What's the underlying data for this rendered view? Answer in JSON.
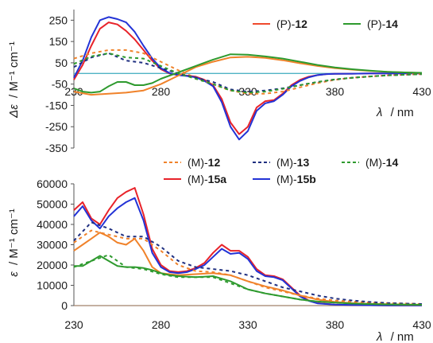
{
  "chart_data": [
    {
      "type": "line",
      "ylabel_symbol": "Δε",
      "ylabel_unit": "/ M⁻¹ cm⁻¹",
      "xlabel_symbol": "λ",
      "xlabel_unit": "/ nm",
      "xlim": [
        230,
        430
      ],
      "ylim": [
        -350,
        300
      ],
      "x_ticks": [
        "230",
        "280",
        "330",
        "380",
        "430"
      ],
      "y_ticks": [
        "250",
        "150",
        "50",
        "-50",
        "-150",
        "-250",
        "-350"
      ],
      "zero_line_color": "#4fb3c4",
      "legend_position": "top-right",
      "legend": [
        {
          "prefix": "(P)-",
          "label": "12",
          "color": "#ef4a2d"
        },
        {
          "prefix": "(P)-",
          "label": "14",
          "color": "#2e9a2e"
        }
      ],
      "series": [
        {
          "id": "P15a",
          "color": "#e8232a",
          "dash": "solid",
          "x": [
            230,
            235,
            240,
            245,
            250,
            255,
            260,
            265,
            270,
            275,
            280,
            285,
            290,
            295,
            300,
            305,
            310,
            315,
            320,
            325,
            330,
            335,
            340,
            345,
            350,
            355,
            360,
            365,
            370,
            375,
            380,
            390,
            400,
            410,
            420,
            430
          ],
          "y": [
            -30,
            40,
            130,
            210,
            240,
            230,
            200,
            160,
            110,
            60,
            20,
            0,
            -8,
            -10,
            -15,
            -30,
            -55,
            -120,
            -230,
            -285,
            -250,
            -160,
            -130,
            -125,
            -95,
            -55,
            -30,
            -15,
            -8,
            -3,
            -2,
            -1,
            0,
            0,
            0,
            0
          ]
        },
        {
          "id": "P15b",
          "color": "#2333d6",
          "dash": "solid",
          "x": [
            230,
            235,
            240,
            245,
            250,
            255,
            260,
            265,
            270,
            275,
            280,
            285,
            290,
            295,
            300,
            305,
            310,
            315,
            320,
            325,
            330,
            335,
            340,
            345,
            350,
            355,
            360,
            365,
            370,
            375,
            380,
            390,
            400,
            410,
            420,
            430
          ],
          "y": [
            -20,
            60,
            170,
            250,
            265,
            255,
            240,
            195,
            130,
            70,
            25,
            2,
            -8,
            -12,
            -18,
            -35,
            -60,
            -135,
            -250,
            -310,
            -270,
            -175,
            -140,
            -130,
            -100,
            -60,
            -35,
            -18,
            -8,
            -3,
            -2,
            -1,
            0,
            0,
            0,
            0
          ]
        },
        {
          "id": "P12",
          "color": "#f0822a",
          "dash": "solid",
          "x": [
            230,
            240,
            250,
            260,
            270,
            280,
            290,
            300,
            310,
            320,
            330,
            340,
            350,
            360,
            370,
            380,
            390,
            400,
            410,
            420,
            430
          ],
          "y": [
            -85,
            -100,
            -95,
            -90,
            -80,
            -50,
            -10,
            30,
            55,
            75,
            78,
            73,
            62,
            48,
            35,
            25,
            18,
            12,
            8,
            5,
            2
          ]
        },
        {
          "id": "P14",
          "color": "#2e9a2e",
          "dash": "solid",
          "x": [
            230,
            235,
            240,
            245,
            250,
            255,
            260,
            265,
            270,
            275,
            280,
            285,
            290,
            300,
            310,
            320,
            330,
            340,
            350,
            360,
            370,
            380,
            390,
            400,
            410,
            420,
            430
          ],
          "y": [
            -70,
            -85,
            -90,
            -85,
            -60,
            -40,
            -40,
            -55,
            -55,
            -45,
            -25,
            -10,
            5,
            35,
            65,
            90,
            88,
            80,
            70,
            55,
            40,
            28,
            20,
            13,
            8,
            5,
            3
          ]
        },
        {
          "id": "M12",
          "color": "#f0822a",
          "dash": "dash",
          "x": [
            230,
            240,
            250,
            260,
            270,
            280,
            290,
            300,
            310,
            320,
            330,
            340,
            350,
            360,
            370,
            380,
            390,
            400,
            410,
            420,
            430
          ],
          "y": [
            70,
            95,
            110,
            110,
            95,
            55,
            15,
            -20,
            -50,
            -80,
            -95,
            -95,
            -85,
            -65,
            -45,
            -30,
            -20,
            -14,
            -9,
            -6,
            -3
          ]
        },
        {
          "id": "M13",
          "color": "#1f2f80",
          "dash": "dash",
          "x": [
            230,
            240,
            250,
            260,
            270,
            280,
            290,
            300,
            310,
            320,
            330,
            340,
            350,
            360,
            370,
            380,
            390,
            400,
            410,
            420,
            430
          ],
          "y": [
            30,
            75,
            95,
            60,
            50,
            25,
            0,
            -20,
            -40,
            -75,
            -85,
            -80,
            -70,
            -55,
            -40,
            -28,
            -20,
            -14,
            -9,
            -6,
            -3
          ]
        },
        {
          "id": "M14",
          "color": "#2e9a2e",
          "dash": "dash",
          "x": [
            230,
            240,
            250,
            260,
            270,
            280,
            290,
            300,
            310,
            320,
            330,
            340,
            350,
            360,
            370,
            380,
            390,
            400,
            410,
            420,
            430
          ],
          "y": [
            45,
            80,
            95,
            75,
            70,
            35,
            0,
            -25,
            -50,
            -80,
            -90,
            -85,
            -72,
            -55,
            -40,
            -28,
            -20,
            -14,
            -9,
            -6,
            -3
          ]
        }
      ]
    },
    {
      "type": "line",
      "ylabel_symbol": "ε",
      "ylabel_unit": "/ M⁻¹ cm⁻¹",
      "xlabel_symbol": "λ",
      "xlabel_unit": "/ nm",
      "xlim": [
        230,
        430
      ],
      "ylim": [
        0,
        60000
      ],
      "x_ticks": [
        "230",
        "280",
        "330",
        "380",
        "430"
      ],
      "y_ticks": [
        "60000",
        "50000",
        "40000",
        "30000",
        "20000",
        "10000",
        "0"
      ],
      "zero_line_color": "#a0806a",
      "legend_position": "top",
      "legend": [
        {
          "prefix": "(M)-",
          "label": "12",
          "color": "#f0822a",
          "dash": "dash"
        },
        {
          "prefix": "(M)-",
          "label": "13",
          "color": "#1f2f80",
          "dash": "dash"
        },
        {
          "prefix": "(M)-",
          "label": "14",
          "color": "#2e9a2e",
          "dash": "dash"
        },
        {
          "prefix": "(M)-",
          "label": "15a",
          "color": "#e8232a",
          "dash": "solid"
        },
        {
          "prefix": "(M)-",
          "label": "15b",
          "color": "#2333d6",
          "dash": "solid"
        }
      ],
      "series": [
        {
          "id": "M15a",
          "color": "#e8232a",
          "dash": "solid",
          "x": [
            230,
            235,
            240,
            245,
            250,
            255,
            260,
            265,
            270,
            275,
            280,
            285,
            290,
            295,
            300,
            305,
            310,
            315,
            320,
            325,
            330,
            335,
            340,
            345,
            350,
            355,
            360,
            365,
            370,
            380,
            390,
            400,
            410,
            420,
            430
          ],
          "y": [
            47000,
            51000,
            43000,
            40000,
            47000,
            53000,
            56000,
            58000,
            45000,
            28000,
            20000,
            17000,
            16500,
            17000,
            18500,
            21000,
            26000,
            30000,
            27000,
            27000,
            24000,
            18000,
            15000,
            14500,
            13000,
            9000,
            5000,
            2500,
            1200,
            500,
            300,
            200,
            100,
            100,
            100
          ]
        },
        {
          "id": "M15b",
          "color": "#2333d6",
          "dash": "solid",
          "x": [
            230,
            235,
            240,
            245,
            250,
            255,
            260,
            265,
            270,
            275,
            280,
            285,
            290,
            295,
            300,
            305,
            310,
            315,
            320,
            325,
            330,
            335,
            340,
            345,
            350,
            355,
            360,
            365,
            370,
            380,
            390,
            400,
            410,
            420,
            430
          ],
          "y": [
            44000,
            49000,
            42000,
            38000,
            44000,
            48000,
            51000,
            53000,
            42000,
            26000,
            19000,
            16500,
            16000,
            16500,
            18000,
            20000,
            24000,
            28000,
            25500,
            26000,
            23000,
            17000,
            14500,
            14000,
            12500,
            8500,
            4500,
            2300,
            1100,
            500,
            300,
            200,
            100,
            100,
            100
          ]
        },
        {
          "id": "M12",
          "color": "#f0822a",
          "dash": "dash",
          "x": [
            230,
            240,
            250,
            260,
            270,
            280,
            290,
            300,
            310,
            320,
            330,
            340,
            350,
            360,
            370,
            380,
            390,
            400,
            410,
            420,
            430
          ],
          "y": [
            31000,
            37000,
            35000,
            33000,
            33000,
            27000,
            20000,
            17000,
            16500,
            15000,
            12000,
            9000,
            7000,
            5000,
            3500,
            2500,
            2000,
            1500,
            1200,
            1000,
            800
          ]
        },
        {
          "id": "M13",
          "color": "#1f2f80",
          "dash": "dash",
          "x": [
            230,
            240,
            250,
            260,
            270,
            280,
            290,
            300,
            310,
            320,
            330,
            340,
            350,
            360,
            370,
            380,
            390,
            400,
            410,
            420,
            430
          ],
          "y": [
            32000,
            41000,
            38000,
            34000,
            34000,
            29000,
            22000,
            19000,
            18000,
            17000,
            15000,
            12000,
            9000,
            7000,
            5000,
            3500,
            2500,
            1800,
            1300,
            1000,
            800
          ]
        },
        {
          "id": "M14",
          "color": "#2e9a2e",
          "dash": "dash",
          "x": [
            230,
            240,
            250,
            260,
            270,
            280,
            290,
            300,
            310,
            320,
            330,
            340,
            350,
            360,
            370,
            380,
            390,
            400,
            410,
            420,
            430
          ],
          "y": [
            19000,
            22000,
            25000,
            19000,
            18000,
            15500,
            14000,
            14000,
            14000,
            11000,
            8000,
            6000,
            4500,
            3000,
            2000,
            1500,
            1000,
            800,
            600,
            500,
            400
          ]
        },
        {
          "id": "M12s",
          "color": "#f0822a",
          "dash": "solid",
          "x": [
            230,
            235,
            240,
            245,
            250,
            255,
            260,
            265,
            270,
            275,
            280,
            285,
            290,
            300,
            310,
            320,
            330,
            340,
            350,
            360,
            370,
            380,
            390,
            400,
            410,
            420,
            430
          ],
          "y": [
            27000,
            30000,
            33000,
            36000,
            34000,
            31000,
            30000,
            33000,
            27000,
            19000,
            16000,
            15500,
            15000,
            15500,
            16000,
            15000,
            12000,
            9500,
            7500,
            5000,
            3000,
            1800,
            1200,
            900,
            700,
            500,
            400
          ]
        },
        {
          "id": "M14s",
          "color": "#2e9a2e",
          "dash": "solid",
          "x": [
            230,
            235,
            240,
            245,
            250,
            255,
            260,
            265,
            270,
            275,
            280,
            285,
            290,
            300,
            310,
            320,
            330,
            340,
            350,
            360,
            370,
            380,
            390,
            400,
            410,
            420,
            430
          ],
          "y": [
            19500,
            19500,
            22000,
            24500,
            22000,
            19500,
            19000,
            19000,
            18500,
            17500,
            16000,
            15000,
            14500,
            14000,
            14500,
            12000,
            8000,
            6000,
            4500,
            3000,
            2000,
            1500,
            1000,
            800,
            600,
            500,
            400
          ]
        }
      ]
    }
  ]
}
